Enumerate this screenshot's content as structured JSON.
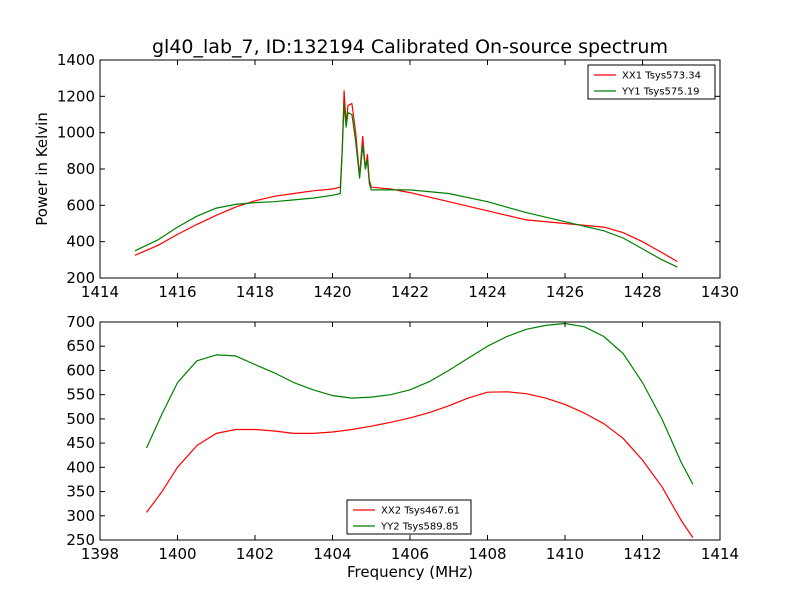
{
  "title": "gl40_lab_7, ID:132194 Calibrated On-source spectrum",
  "colors": {
    "xx": "#ff0000",
    "yy": "#008000"
  },
  "chart_data": [
    {
      "type": "line",
      "xlabel": "",
      "ylabel": "Power in Kelvin",
      "xlim": [
        1414,
        1430
      ],
      "ylim": [
        200,
        1400
      ],
      "xticks": [
        1414,
        1416,
        1418,
        1420,
        1422,
        1424,
        1426,
        1428,
        1430
      ],
      "yticks": [
        200,
        400,
        600,
        800,
        1000,
        1200,
        1400
      ],
      "legend": "top-right",
      "series": [
        {
          "name": "XX1 Tsys573.34",
          "color": "#ff0000",
          "points": [
            [
              1414.9,
              325
            ],
            [
              1415.5,
              380
            ],
            [
              1416.0,
              440
            ],
            [
              1416.5,
              495
            ],
            [
              1417.0,
              545
            ],
            [
              1417.5,
              590
            ],
            [
              1418.0,
              625
            ],
            [
              1418.5,
              650
            ],
            [
              1419.0,
              665
            ],
            [
              1419.5,
              680
            ],
            [
              1420.0,
              690
            ],
            [
              1420.2,
              700
            ],
            [
              1420.25,
              900
            ],
            [
              1420.3,
              1230
            ],
            [
              1420.35,
              1050
            ],
            [
              1420.4,
              1150
            ],
            [
              1420.5,
              1160
            ],
            [
              1420.6,
              1000
            ],
            [
              1420.7,
              760
            ],
            [
              1420.78,
              980
            ],
            [
              1420.85,
              800
            ],
            [
              1420.9,
              880
            ],
            [
              1420.95,
              740
            ],
            [
              1421.0,
              700
            ],
            [
              1421.5,
              690
            ],
            [
              1422.0,
              670
            ],
            [
              1423.0,
              620
            ],
            [
              1424.0,
              570
            ],
            [
              1425.0,
              520
            ],
            [
              1426.0,
              500
            ],
            [
              1427.0,
              480
            ],
            [
              1427.5,
              450
            ],
            [
              1428.0,
              400
            ],
            [
              1428.5,
              340
            ],
            [
              1428.9,
              290
            ]
          ]
        },
        {
          "name": "YY1 Tsys575.19",
          "color": "#008000",
          "points": [
            [
              1414.9,
              350
            ],
            [
              1415.5,
              410
            ],
            [
              1416.0,
              480
            ],
            [
              1416.5,
              540
            ],
            [
              1417.0,
              585
            ],
            [
              1417.5,
              605
            ],
            [
              1418.0,
              615
            ],
            [
              1418.5,
              620
            ],
            [
              1419.0,
              630
            ],
            [
              1419.5,
              640
            ],
            [
              1420.0,
              655
            ],
            [
              1420.2,
              665
            ],
            [
              1420.25,
              900
            ],
            [
              1420.3,
              1160
            ],
            [
              1420.35,
              1030
            ],
            [
              1420.4,
              1110
            ],
            [
              1420.5,
              1100
            ],
            [
              1420.6,
              950
            ],
            [
              1420.7,
              750
            ],
            [
              1420.78,
              930
            ],
            [
              1420.85,
              800
            ],
            [
              1420.9,
              850
            ],
            [
              1420.95,
              720
            ],
            [
              1421.0,
              685
            ],
            [
              1421.5,
              685
            ],
            [
              1422.0,
              685
            ],
            [
              1423.0,
              665
            ],
            [
              1424.0,
              620
            ],
            [
              1425.0,
              560
            ],
            [
              1426.0,
              510
            ],
            [
              1427.0,
              460
            ],
            [
              1427.5,
              420
            ],
            [
              1428.0,
              360
            ],
            [
              1428.5,
              300
            ],
            [
              1428.9,
              260
            ]
          ]
        }
      ]
    },
    {
      "type": "line",
      "xlabel": "Frequency (MHz)",
      "ylabel": "",
      "xlim": [
        1398,
        1414
      ],
      "ylim": [
        250,
        700
      ],
      "xticks": [
        1398,
        1400,
        1402,
        1404,
        1406,
        1408,
        1410,
        1412,
        1414
      ],
      "yticks": [
        250,
        300,
        350,
        400,
        450,
        500,
        550,
        600,
        650,
        700
      ],
      "legend": "lower-center",
      "series": [
        {
          "name": "XX2 Tsys467.61",
          "color": "#ff0000",
          "points": [
            [
              1399.2,
              307
            ],
            [
              1399.6,
              350
            ],
            [
              1400.0,
              400
            ],
            [
              1400.5,
              445
            ],
            [
              1401.0,
              470
            ],
            [
              1401.5,
              478
            ],
            [
              1402.0,
              478
            ],
            [
              1402.5,
              475
            ],
            [
              1403.0,
              470
            ],
            [
              1403.5,
              470
            ],
            [
              1404.0,
              473
            ],
            [
              1404.5,
              478
            ],
            [
              1405.0,
              485
            ],
            [
              1405.5,
              493
            ],
            [
              1406.0,
              502
            ],
            [
              1406.5,
              513
            ],
            [
              1407.0,
              527
            ],
            [
              1407.5,
              543
            ],
            [
              1408.0,
              555
            ],
            [
              1408.5,
              556
            ],
            [
              1409.0,
              552
            ],
            [
              1409.5,
              543
            ],
            [
              1410.0,
              530
            ],
            [
              1410.5,
              512
            ],
            [
              1411.0,
              490
            ],
            [
              1411.5,
              460
            ],
            [
              1412.0,
              415
            ],
            [
              1412.5,
              360
            ],
            [
              1413.0,
              290
            ],
            [
              1413.3,
              255
            ]
          ]
        },
        {
          "name": "YY2 Tsys589.85",
          "color": "#008000",
          "points": [
            [
              1399.2,
              440
            ],
            [
              1399.6,
              510
            ],
            [
              1400.0,
              575
            ],
            [
              1400.5,
              620
            ],
            [
              1401.0,
              632
            ],
            [
              1401.5,
              630
            ],
            [
              1402.0,
              612
            ],
            [
              1402.5,
              595
            ],
            [
              1403.0,
              575
            ],
            [
              1403.5,
              560
            ],
            [
              1404.0,
              548
            ],
            [
              1404.5,
              543
            ],
            [
              1405.0,
              545
            ],
            [
              1405.5,
              550
            ],
            [
              1406.0,
              560
            ],
            [
              1406.5,
              577
            ],
            [
              1407.0,
              600
            ],
            [
              1407.5,
              625
            ],
            [
              1408.0,
              650
            ],
            [
              1408.5,
              670
            ],
            [
              1409.0,
              685
            ],
            [
              1409.5,
              693
            ],
            [
              1410.0,
              697
            ],
            [
              1410.5,
              690
            ],
            [
              1411.0,
              670
            ],
            [
              1411.5,
              635
            ],
            [
              1412.0,
              575
            ],
            [
              1412.5,
              500
            ],
            [
              1413.0,
              410
            ],
            [
              1413.3,
              365
            ]
          ]
        }
      ]
    }
  ]
}
